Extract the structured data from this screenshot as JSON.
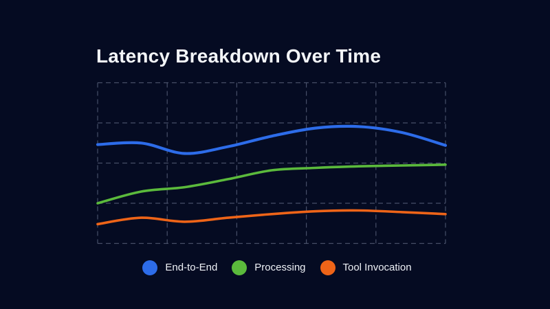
{
  "page": {
    "background_color": "#050b22",
    "grid_color": "#5d6680",
    "title_color": "#f3f5f8",
    "legend_text_color": "#eef1f6"
  },
  "chart": {
    "title": "Latency Breakdown Over Time"
  },
  "chart_data": {
    "type": "line",
    "title": "Latency Breakdown Over Time",
    "xlabel": "",
    "ylabel": "",
    "x": [
      1,
      2,
      3,
      4,
      5,
      6,
      7,
      8,
      9
    ],
    "x_tick_labels": [],
    "y_tick_labels": [],
    "ylim": [
      0,
      4
    ],
    "y_units": "gridline units (no axis labels shown)",
    "grid": true,
    "grid_style": "dashed",
    "legend_position": "bottom",
    "series": [
      {
        "name": "End-to-End",
        "color": "#2d6ce9",
        "values": [
          2.46,
          2.5,
          2.24,
          2.41,
          2.67,
          2.87,
          2.91,
          2.76,
          2.44
        ]
      },
      {
        "name": "Processing",
        "color": "#5bba3c",
        "values": [
          1.0,
          1.29,
          1.4,
          1.6,
          1.82,
          1.88,
          1.92,
          1.94,
          1.96
        ]
      },
      {
        "name": "Tool Invocation",
        "color": "#ee6418",
        "values": [
          0.48,
          0.64,
          0.54,
          0.64,
          0.73,
          0.8,
          0.82,
          0.78,
          0.73
        ]
      }
    ]
  }
}
